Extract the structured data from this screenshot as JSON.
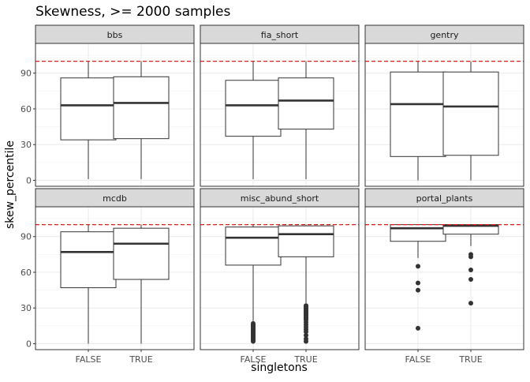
{
  "chart_data": {
    "type": "boxplot",
    "title": "Skewness, >= 2000 samples",
    "xlabel": "singletons",
    "ylabel": "skew_percentile",
    "categories": [
      "FALSE",
      "TRUE"
    ],
    "y_ticks": [
      0,
      30,
      60,
      90
    ],
    "ylim": [
      -5,
      115
    ],
    "reference_line": {
      "y": 100,
      "style": "dashed",
      "color": "#e41a1c"
    },
    "grid": true,
    "facets": [
      {
        "name": "bbs",
        "boxes": [
          {
            "category": "FALSE",
            "lower_whisker": 1,
            "q1": 34,
            "median": 63,
            "q3": 86,
            "upper_whisker": 100,
            "outliers": []
          },
          {
            "category": "TRUE",
            "lower_whisker": 1,
            "q1": 35,
            "median": 65,
            "q3": 87,
            "upper_whisker": 100,
            "outliers": []
          }
        ]
      },
      {
        "name": "fia_short",
        "boxes": [
          {
            "category": "FALSE",
            "lower_whisker": 1,
            "q1": 37,
            "median": 63,
            "q3": 84,
            "upper_whisker": 100,
            "outliers": []
          },
          {
            "category": "TRUE",
            "lower_whisker": 1,
            "q1": 43,
            "median": 67,
            "q3": 86,
            "upper_whisker": 100,
            "outliers": []
          }
        ]
      },
      {
        "name": "gentry",
        "boxes": [
          {
            "category": "FALSE",
            "lower_whisker": 0,
            "q1": 20,
            "median": 64,
            "q3": 91,
            "upper_whisker": 100,
            "outliers": []
          },
          {
            "category": "TRUE",
            "lower_whisker": 0,
            "q1": 21,
            "median": 62,
            "q3": 91,
            "upper_whisker": 100,
            "outliers": []
          }
        ]
      },
      {
        "name": "mcdb",
        "boxes": [
          {
            "category": "FALSE",
            "lower_whisker": 0,
            "q1": 47,
            "median": 77,
            "q3": 94,
            "upper_whisker": 100,
            "outliers": []
          },
          {
            "category": "TRUE",
            "lower_whisker": 0,
            "q1": 54,
            "median": 84,
            "q3": 97,
            "upper_whisker": 100,
            "outliers": []
          }
        ]
      },
      {
        "name": "misc_abund_short",
        "boxes": [
          {
            "category": "FALSE",
            "lower_whisker": 19,
            "q1": 66,
            "median": 89,
            "q3": 98,
            "upper_whisker": 100,
            "outliers": [
              2,
              3,
              4,
              5,
              6,
              7,
              8,
              9,
              10,
              11,
              12,
              13,
              14,
              15,
              16,
              17
            ]
          },
          {
            "category": "TRUE",
            "lower_whisker": 34,
            "q1": 73,
            "median": 92,
            "q3": 99,
            "upper_whisker": 100,
            "outliers": [
              2,
              4,
              7,
              10,
              12,
              14,
              16,
              18,
              20,
              21,
              22,
              23,
              24,
              25,
              26,
              27,
              28,
              29,
              30,
              31,
              32
            ]
          }
        ]
      },
      {
        "name": "portal_plants",
        "boxes": [
          {
            "category": "FALSE",
            "lower_whisker": 72,
            "q1": 86,
            "median": 97,
            "q3": 100,
            "upper_whisker": 100,
            "outliers": [
              13,
              45,
              51,
              65
            ]
          },
          {
            "category": "TRUE",
            "lower_whisker": 82,
            "q1": 92,
            "median": 99,
            "q3": 100,
            "upper_whisker": 100,
            "outliers": [
              34,
              54,
              62,
              73,
              75
            ]
          }
        ]
      }
    ]
  }
}
